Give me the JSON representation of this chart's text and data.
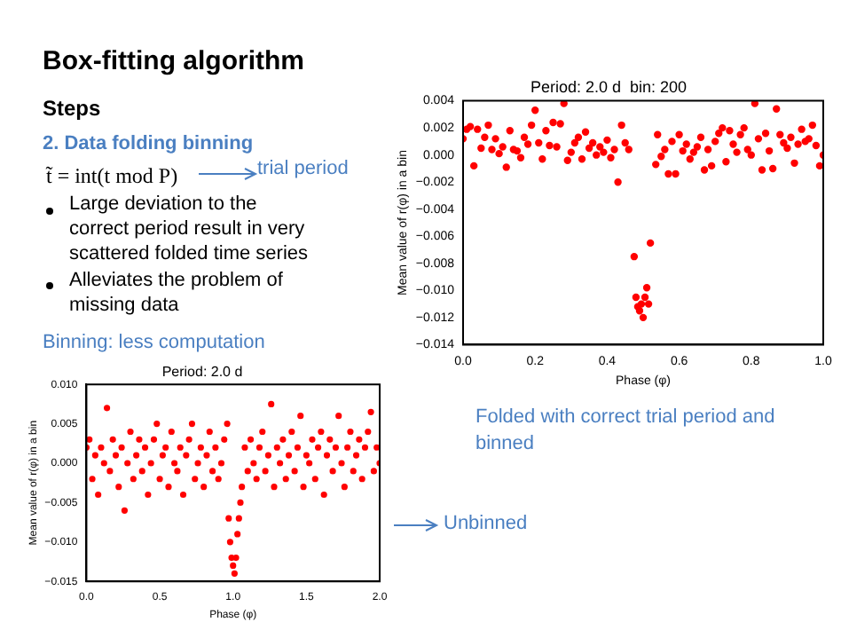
{
  "chart_data": [
    {
      "type": "other",
      "title": "Box-fitting algorithm",
      "annotations": [
        "Steps",
        "2. Data folding binning",
        "t̃ = int(t mod P)",
        "trial period",
        "Large deviation to the correct period result in very scattered folded time series",
        "Alleviates the problem of missing data",
        "Binning: less computation"
      ]
    },
    {
      "type": "scatter",
      "title": "Period: 2.0 d  bin: 200",
      "xlabel": "Phase (φ)",
      "ylabel": "Mean value of r(φ) in a bin",
      "color": "#ff0000",
      "marker": "circle",
      "grid": false,
      "legend": false,
      "xlim": [
        0,
        1
      ],
      "ylim": [
        -0.014,
        0.004
      ],
      "xticks": [
        {
          "value": 0,
          "label": "0.0"
        },
        {
          "value": 0.2,
          "label": "0.2"
        },
        {
          "value": 0.4,
          "label": "0.4"
        },
        {
          "value": 0.6,
          "label": "0.6"
        },
        {
          "value": 0.8,
          "label": "0.8"
        },
        {
          "value": 1,
          "label": "1.0"
        }
      ],
      "yticks": [
        {
          "value": 0.004,
          "label": "0.004"
        },
        {
          "value": 0.002,
          "label": "0.002"
        },
        {
          "value": 0,
          "label": "0.000"
        },
        {
          "value": -0.002,
          "label": "−0.002"
        },
        {
          "value": -0.004,
          "label": "−0.004"
        },
        {
          "value": -0.006,
          "label": "−0.006"
        },
        {
          "value": -0.008,
          "label": "−0.008"
        },
        {
          "value": -0.01,
          "label": "−0.010"
        },
        {
          "value": -0.012,
          "label": "−0.012"
        },
        {
          "value": -0.014,
          "label": "−0.014"
        }
      ],
      "x": [
        0,
        0.01,
        0.02,
        0.03,
        0.04,
        0.05,
        0.06,
        0.07,
        0.08,
        0.09,
        0.1,
        0.11,
        0.12,
        0.13,
        0.14,
        0.15,
        0.16,
        0.17,
        0.18,
        0.19,
        0.2,
        0.21,
        0.22,
        0.23,
        0.24,
        0.25,
        0.26,
        0.27,
        0.28,
        0.29,
        0.3,
        0.31,
        0.32,
        0.33,
        0.34,
        0.35,
        0.36,
        0.37,
        0.38,
        0.39,
        0.4,
        0.41,
        0.42,
        0.43,
        0.44,
        0.45,
        0.46,
        0.475,
        0.48,
        0.485,
        0.49,
        0.495,
        0.5,
        0.505,
        0.51,
        0.515,
        0.52,
        0.535,
        0.54,
        0.55,
        0.56,
        0.57,
        0.58,
        0.59,
        0.6,
        0.61,
        0.62,
        0.63,
        0.64,
        0.65,
        0.66,
        0.67,
        0.68,
        0.69,
        0.7,
        0.71,
        0.72,
        0.73,
        0.74,
        0.75,
        0.76,
        0.77,
        0.78,
        0.79,
        0.8,
        0.81,
        0.82,
        0.83,
        0.84,
        0.85,
        0.86,
        0.87,
        0.88,
        0.89,
        0.9,
        0.91,
        0.92,
        0.93,
        0.94,
        0.95,
        0.96,
        0.97,
        0.98,
        0.99,
        1
      ],
      "values": [
        0.0012,
        0.0019,
        0.0021,
        -0.0008,
        0.0019,
        0.0005,
        0.0013,
        0.0022,
        0.0004,
        0.0012,
        0.0001,
        0.0006,
        -0.0009,
        0.0018,
        0.0004,
        0.0003,
        -0.0002,
        0.0013,
        0.0008,
        0.0022,
        0.0033,
        0.0009,
        -0.0003,
        0.0018,
        0.0007,
        0.0024,
        0.0006,
        0.0023,
        0.0038,
        -0.0004,
        0.0002,
        0.0009,
        0.0013,
        -0.0003,
        0.0017,
        0.0005,
        0.0009,
        0,
        0.0006,
        0.0002,
        0.0011,
        -0.0002,
        0.0004,
        -0.002,
        0.0022,
        0.0009,
        0.0004,
        -0.0075,
        -0.0105,
        -0.0112,
        -0.0115,
        -0.011,
        -0.012,
        -0.0105,
        -0.0098,
        -0.011,
        -0.0065,
        -0.0007,
        0.0015,
        -0.0001,
        0.0004,
        -0.0014,
        0.001,
        -0.0014,
        0.0015,
        0.0003,
        0.0008,
        -0.0003,
        0.0002,
        0.0006,
        0.0013,
        -0.0011,
        0.0004,
        -0.0008,
        0.001,
        0.0016,
        0.002,
        -0.0005,
        0.0018,
        0.0008,
        0.0002,
        0.0015,
        0.002,
        0.0004,
        0,
        0.0038,
        0.0012,
        -0.0011,
        0.0016,
        0.0003,
        -0.001,
        0.0034,
        0.0015,
        0.0009,
        0.0005,
        0.0013,
        -0.0006,
        0.0008,
        0.0019,
        0.001,
        0.0012,
        0.0022,
        0.0007,
        -0.0008,
        0
      ],
      "annotations": [
        "Folded with correct trial period and binned"
      ]
    },
    {
      "type": "scatter",
      "title": "Period: 2.0 d",
      "xlabel": "Phase (φ)",
      "ylabel": "Mean value of r(φ) in a bin",
      "color": "#ff0000",
      "marker": "circle",
      "grid": false,
      "legend": false,
      "xlim": [
        0,
        2
      ],
      "ylim": [
        -0.015,
        0.01
      ],
      "xticks": [
        {
          "value": 0,
          "label": "0.0"
        },
        {
          "value": 0.5,
          "label": "0.5"
        },
        {
          "value": 1,
          "label": "1.0"
        },
        {
          "value": 1.5,
          "label": "1.5"
        },
        {
          "value": 2,
          "label": "2.0"
        }
      ],
      "yticks": [
        {
          "value": 0.01,
          "label": "0.010"
        },
        {
          "value": 0.005,
          "label": "0.005"
        },
        {
          "value": 0,
          "label": "0.000"
        },
        {
          "value": -0.005,
          "label": "−0.005"
        },
        {
          "value": -0.01,
          "label": "−0.010"
        },
        {
          "value": -0.015,
          "label": "−0.015"
        }
      ],
      "x": [
        0,
        0.02,
        0.04,
        0.06,
        0.08,
        0.1,
        0.12,
        0.14,
        0.16,
        0.18,
        0.2,
        0.22,
        0.24,
        0.26,
        0.28,
        0.3,
        0.32,
        0.34,
        0.36,
        0.38,
        0.4,
        0.42,
        0.44,
        0.46,
        0.48,
        0.5,
        0.52,
        0.54,
        0.56,
        0.58,
        0.6,
        0.62,
        0.64,
        0.66,
        0.68,
        0.7,
        0.72,
        0.74,
        0.76,
        0.78,
        0.8,
        0.82,
        0.84,
        0.86,
        0.88,
        0.9,
        0.92,
        0.94,
        0.96,
        0.97,
        0.98,
        0.99,
        1,
        1.01,
        1.02,
        1.03,
        1.04,
        1.05,
        1.06,
        1.08,
        1.1,
        1.12,
        1.14,
        1.16,
        1.18,
        1.2,
        1.22,
        1.24,
        1.26,
        1.28,
        1.3,
        1.32,
        1.34,
        1.36,
        1.38,
        1.4,
        1.42,
        1.44,
        1.46,
        1.48,
        1.5,
        1.52,
        1.54,
        1.56,
        1.58,
        1.6,
        1.62,
        1.64,
        1.66,
        1.68,
        1.7,
        1.72,
        1.74,
        1.76,
        1.78,
        1.8,
        1.82,
        1.84,
        1.86,
        1.88,
        1.9,
        1.92,
        1.94,
        1.96,
        1.98,
        2
      ],
      "values": [
        0.002,
        0.003,
        -0.002,
        0.001,
        -0.004,
        0.002,
        0,
        0.007,
        -0.001,
        0.003,
        0.001,
        -0.003,
        0.002,
        -0.006,
        0,
        0.004,
        -0.002,
        0.001,
        0.003,
        -0.001,
        0.002,
        -0.004,
        0,
        0.003,
        0.005,
        -0.002,
        0.001,
        0.002,
        -0.003,
        0.004,
        0,
        -0.001,
        0.002,
        -0.004,
        0.001,
        0.003,
        0.005,
        -0.002,
        0,
        0.002,
        -0.003,
        0.001,
        0.004,
        -0.001,
        0.002,
        -0.002,
        0,
        0.003,
        0.005,
        -0.007,
        -0.01,
        -0.012,
        -0.013,
        -0.014,
        -0.012,
        -0.009,
        -0.007,
        -0.005,
        -0.003,
        0.002,
        -0.001,
        0.003,
        0,
        -0.002,
        0.002,
        0.004,
        -0.001,
        0.001,
        0.0075,
        -0.003,
        0.002,
        0,
        0.003,
        -0.002,
        0.001,
        0.004,
        -0.001,
        0.002,
        0.006,
        -0.003,
        0.001,
        0,
        0.003,
        -0.002,
        0.002,
        0.004,
        -0.004,
        0.001,
        0.003,
        -0.001,
        0.002,
        0.006,
        0,
        -0.003,
        0.002,
        0.004,
        -0.001,
        0.001,
        0.003,
        -0.002,
        0.002,
        0.004,
        0.0065,
        -0.001,
        0.002,
        0
      ],
      "annotations": [
        "Unbinned"
      ]
    }
  ]
}
